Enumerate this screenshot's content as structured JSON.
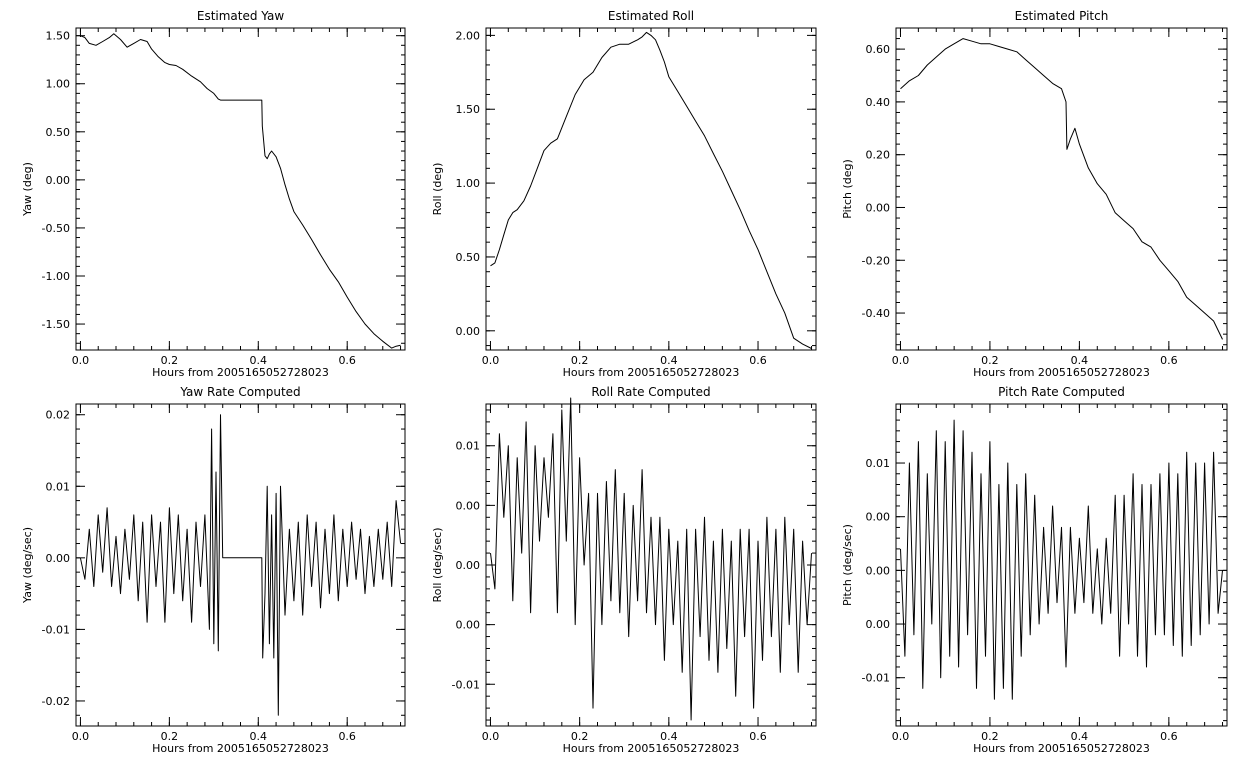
{
  "chart_data": [
    {
      "type": "line",
      "title": "Estimated Yaw",
      "xlabel": "Hours from 2005165052728023",
      "ylabel": "Yaw (deg)",
      "xlim": [
        -0.01,
        0.73
      ],
      "ylim": [
        -1.77,
        1.58
      ],
      "xticks": [
        0.0,
        0.2,
        0.4,
        0.6
      ],
      "xtick_labels": [
        "0.0",
        "0.2",
        "0.4",
        "0.6"
      ],
      "yticks": [
        -1.5,
        -1.0,
        -0.5,
        0.0,
        0.5,
        1.0,
        1.5
      ],
      "ytick_labels": [
        "-1.50",
        "-1.00",
        "-0.50",
        "0.00",
        "0.50",
        "1.00",
        "1.50"
      ],
      "grid": false,
      "series": [
        {
          "x": [
            0.0,
            0.01,
            0.02,
            0.035,
            0.05,
            0.065,
            0.075,
            0.09,
            0.105,
            0.12,
            0.135,
            0.15,
            0.16,
            0.175,
            0.19,
            0.2,
            0.215,
            0.23,
            0.25,
            0.27,
            0.285,
            0.3,
            0.31,
            0.315,
            0.35,
            0.38,
            0.408,
            0.409,
            0.415,
            0.42,
            0.425,
            0.43,
            0.44,
            0.45,
            0.46,
            0.47,
            0.48,
            0.5,
            0.52,
            0.54,
            0.56,
            0.58,
            0.6,
            0.62,
            0.64,
            0.66,
            0.68,
            0.7,
            0.71,
            0.72
          ],
          "y": [
            1.5,
            1.48,
            1.42,
            1.4,
            1.44,
            1.48,
            1.52,
            1.46,
            1.38,
            1.42,
            1.46,
            1.44,
            1.36,
            1.28,
            1.22,
            1.2,
            1.19,
            1.15,
            1.08,
            1.02,
            0.95,
            0.9,
            0.84,
            0.83,
            0.83,
            0.83,
            0.83,
            0.56,
            0.25,
            0.22,
            0.27,
            0.3,
            0.24,
            0.12,
            -0.05,
            -0.2,
            -0.33,
            -0.47,
            -0.62,
            -0.78,
            -0.93,
            -1.06,
            -1.22,
            -1.37,
            -1.5,
            -1.6,
            -1.68,
            -1.75,
            -1.73,
            -1.72
          ]
        }
      ]
    },
    {
      "type": "line",
      "title": "Estimated Roll",
      "xlabel": "Hours from 2005165052728023",
      "ylabel": "Roll (deg)",
      "xlim": [
        -0.01,
        0.73
      ],
      "ylim": [
        -0.13,
        2.05
      ],
      "xticks": [
        0.0,
        0.2,
        0.4,
        0.6
      ],
      "xtick_labels": [
        "0.0",
        "0.2",
        "0.4",
        "0.6"
      ],
      "yticks": [
        0.0,
        0.5,
        1.0,
        1.5,
        2.0
      ],
      "ytick_labels": [
        "0.00",
        "0.50",
        "1.00",
        "1.50",
        "2.00"
      ],
      "grid": false,
      "series": [
        {
          "x": [
            0.0,
            0.01,
            0.02,
            0.03,
            0.04,
            0.05,
            0.06,
            0.075,
            0.09,
            0.105,
            0.12,
            0.135,
            0.15,
            0.17,
            0.19,
            0.21,
            0.23,
            0.25,
            0.27,
            0.29,
            0.31,
            0.33,
            0.34,
            0.35,
            0.36,
            0.37,
            0.38,
            0.39,
            0.4,
            0.42,
            0.44,
            0.46,
            0.48,
            0.5,
            0.52,
            0.54,
            0.56,
            0.58,
            0.6,
            0.62,
            0.64,
            0.66,
            0.68,
            0.7,
            0.72
          ],
          "y": [
            0.44,
            0.46,
            0.55,
            0.65,
            0.75,
            0.8,
            0.82,
            0.88,
            0.98,
            1.1,
            1.22,
            1.27,
            1.3,
            1.45,
            1.6,
            1.7,
            1.75,
            1.85,
            1.92,
            1.94,
            1.94,
            1.97,
            1.99,
            2.02,
            2.0,
            1.97,
            1.9,
            1.82,
            1.72,
            1.62,
            1.52,
            1.42,
            1.32,
            1.2,
            1.08,
            0.95,
            0.82,
            0.68,
            0.55,
            0.4,
            0.25,
            0.12,
            -0.05,
            -0.09,
            -0.12
          ]
        }
      ]
    },
    {
      "type": "line",
      "title": "Estimated Pitch",
      "xlabel": "Hours from 2005165052728023",
      "ylabel": "Pitch (deg)",
      "xlim": [
        -0.01,
        0.73
      ],
      "ylim": [
        -0.54,
        0.68
      ],
      "xticks": [
        0.0,
        0.2,
        0.4,
        0.6
      ],
      "xtick_labels": [
        "0.0",
        "0.2",
        "0.4",
        "0.6"
      ],
      "yticks": [
        -0.4,
        -0.2,
        0.0,
        0.2,
        0.4,
        0.6
      ],
      "ytick_labels": [
        "-0.40",
        "-0.20",
        "0.00",
        "0.20",
        "0.40",
        "0.60"
      ],
      "grid": false,
      "series": [
        {
          "x": [
            0.0,
            0.02,
            0.04,
            0.06,
            0.08,
            0.1,
            0.12,
            0.14,
            0.16,
            0.18,
            0.2,
            0.22,
            0.24,
            0.26,
            0.28,
            0.3,
            0.32,
            0.34,
            0.36,
            0.37,
            0.372,
            0.38,
            0.39,
            0.4,
            0.42,
            0.44,
            0.46,
            0.48,
            0.5,
            0.52,
            0.54,
            0.56,
            0.58,
            0.6,
            0.62,
            0.64,
            0.66,
            0.68,
            0.7,
            0.72
          ],
          "y": [
            0.45,
            0.48,
            0.5,
            0.54,
            0.57,
            0.6,
            0.62,
            0.64,
            0.63,
            0.62,
            0.62,
            0.61,
            0.6,
            0.59,
            0.56,
            0.53,
            0.5,
            0.47,
            0.45,
            0.4,
            0.22,
            0.26,
            0.3,
            0.24,
            0.15,
            0.09,
            0.05,
            -0.02,
            -0.05,
            -0.08,
            -0.13,
            -0.15,
            -0.2,
            -0.24,
            -0.28,
            -0.34,
            -0.37,
            -0.4,
            -0.43,
            -0.5
          ]
        }
      ]
    },
    {
      "type": "line",
      "title": "Yaw Rate Computed",
      "xlabel": "Hours from 2005165052728023",
      "ylabel": "Yaw (deg/sec)",
      "xlim": [
        -0.01,
        0.73
      ],
      "ylim": [
        -0.0235,
        0.0215
      ],
      "xticks": [
        0.0,
        0.2,
        0.4,
        0.6
      ],
      "xtick_labels": [
        "0.0",
        "0.2",
        "0.4",
        "0.6"
      ],
      "yticks": [
        -0.02,
        -0.01,
        0.0,
        0.01,
        0.02
      ],
      "ytick_labels": [
        "-0.02",
        "-0.01",
        "0.00",
        "0.01",
        "0.02"
      ],
      "grid": false,
      "series": [
        {
          "x": [
            0.0,
            0.01,
            0.02,
            0.03,
            0.04,
            0.05,
            0.06,
            0.07,
            0.08,
            0.09,
            0.1,
            0.11,
            0.12,
            0.13,
            0.14,
            0.15,
            0.16,
            0.17,
            0.18,
            0.19,
            0.2,
            0.21,
            0.22,
            0.23,
            0.24,
            0.25,
            0.26,
            0.27,
            0.28,
            0.29,
            0.295,
            0.3,
            0.305,
            0.31,
            0.315,
            0.32,
            0.33,
            0.36,
            0.39,
            0.408,
            0.41,
            0.415,
            0.42,
            0.425,
            0.43,
            0.435,
            0.44,
            0.445,
            0.45,
            0.46,
            0.47,
            0.48,
            0.49,
            0.5,
            0.51,
            0.52,
            0.53,
            0.54,
            0.55,
            0.56,
            0.57,
            0.58,
            0.59,
            0.6,
            0.61,
            0.62,
            0.63,
            0.64,
            0.65,
            0.66,
            0.67,
            0.68,
            0.69,
            0.7,
            0.71,
            0.72
          ],
          "y": [
            0.0,
            -0.003,
            0.004,
            -0.004,
            0.006,
            -0.002,
            0.007,
            -0.004,
            0.003,
            -0.005,
            0.004,
            -0.003,
            0.006,
            -0.006,
            0.005,
            -0.009,
            0.006,
            -0.004,
            0.005,
            -0.009,
            0.007,
            -0.005,
            0.006,
            -0.006,
            0.004,
            -0.009,
            0.005,
            -0.004,
            0.006,
            -0.01,
            0.018,
            -0.012,
            0.012,
            -0.013,
            0.02,
            0.0,
            0.0,
            0.0,
            0.0,
            0.0,
            -0.014,
            -0.005,
            0.01,
            -0.012,
            0.006,
            -0.014,
            0.009,
            -0.022,
            0.01,
            -0.008,
            0.004,
            -0.006,
            0.005,
            -0.008,
            0.006,
            -0.004,
            0.005,
            -0.007,
            0.004,
            -0.005,
            0.006,
            -0.006,
            0.004,
            -0.004,
            0.005,
            -0.003,
            0.004,
            -0.005,
            0.003,
            -0.004,
            0.004,
            -0.003,
            0.005,
            -0.004,
            0.008,
            0.002
          ]
        }
      ]
    },
    {
      "type": "line",
      "title": "Roll Rate Computed",
      "xlabel": "Hours from 2005165052728023",
      "ylabel": "Roll (deg/sec)",
      "xlim": [
        -0.01,
        0.73
      ],
      "ylim": [
        -0.0135,
        0.0135
      ],
      "xticks": [
        0.0,
        0.2,
        0.4,
        0.6
      ],
      "xtick_labels": [
        "0.0",
        "0.2",
        "0.4",
        "0.6"
      ],
      "yticks": [
        -0.01,
        -0.005,
        0.0,
        0.005,
        0.01
      ],
      "ytick_labels": [
        "-0.01",
        "0.00",
        "0.00",
        "0.00",
        "0.01"
      ],
      "grid": false,
      "series": [
        {
          "x": [
            0.0,
            0.01,
            0.02,
            0.03,
            0.04,
            0.05,
            0.06,
            0.07,
            0.08,
            0.09,
            0.1,
            0.11,
            0.12,
            0.13,
            0.14,
            0.15,
            0.16,
            0.17,
            0.18,
            0.19,
            0.2,
            0.21,
            0.22,
            0.23,
            0.24,
            0.25,
            0.26,
            0.27,
            0.28,
            0.29,
            0.3,
            0.31,
            0.32,
            0.33,
            0.34,
            0.35,
            0.36,
            0.37,
            0.38,
            0.39,
            0.4,
            0.41,
            0.42,
            0.43,
            0.44,
            0.45,
            0.46,
            0.47,
            0.48,
            0.49,
            0.5,
            0.51,
            0.52,
            0.53,
            0.54,
            0.55,
            0.56,
            0.57,
            0.58,
            0.59,
            0.6,
            0.61,
            0.62,
            0.63,
            0.64,
            0.65,
            0.66,
            0.67,
            0.68,
            0.69,
            0.7,
            0.71,
            0.72
          ],
          "y": [
            0.001,
            -0.002,
            0.011,
            0.004,
            0.01,
            -0.003,
            0.009,
            0.001,
            0.012,
            -0.004,
            0.01,
            0.002,
            0.009,
            0.004,
            0.011,
            -0.004,
            0.013,
            0.002,
            0.014,
            -0.005,
            0.009,
            0.0,
            0.006,
            -0.012,
            0.006,
            -0.005,
            0.007,
            -0.003,
            0.008,
            -0.004,
            0.006,
            -0.006,
            0.005,
            -0.003,
            0.008,
            -0.004,
            0.004,
            -0.005,
            0.004,
            -0.008,
            0.003,
            -0.005,
            0.002,
            -0.009,
            0.003,
            -0.013,
            0.003,
            -0.006,
            0.004,
            -0.008,
            0.002,
            -0.009,
            0.003,
            -0.007,
            0.002,
            -0.011,
            0.003,
            -0.006,
            0.003,
            -0.012,
            0.002,
            -0.008,
            0.004,
            -0.006,
            0.003,
            -0.009,
            0.004,
            -0.005,
            0.003,
            -0.009,
            0.002,
            -0.005,
            0.001
          ]
        }
      ]
    },
    {
      "type": "line",
      "title": "Pitch Rate Computed",
      "xlabel": "Hours from 2005165052728023",
      "ylabel": "Pitch (deg/sec)",
      "xlim": [
        -0.01,
        0.73
      ],
      "ylim": [
        -0.0145,
        0.0155
      ],
      "xticks": [
        0.0,
        0.2,
        0.4,
        0.6
      ],
      "xtick_labels": [
        "0.0",
        "0.2",
        "0.4",
        "0.6"
      ],
      "yticks": [
        -0.01,
        -0.005,
        0.0,
        0.005,
        0.01
      ],
      "ytick_labels": [
        "-0.01",
        "0.00",
        "0.00",
        "0.00",
        "0.01"
      ],
      "grid": false,
      "series": [
        {
          "x": [
            0.0,
            0.01,
            0.02,
            0.03,
            0.04,
            0.05,
            0.06,
            0.07,
            0.08,
            0.09,
            0.1,
            0.11,
            0.12,
            0.13,
            0.14,
            0.15,
            0.16,
            0.17,
            0.18,
            0.19,
            0.2,
            0.21,
            0.22,
            0.23,
            0.24,
            0.25,
            0.26,
            0.27,
            0.28,
            0.29,
            0.3,
            0.31,
            0.32,
            0.33,
            0.34,
            0.35,
            0.36,
            0.37,
            0.38,
            0.39,
            0.4,
            0.41,
            0.42,
            0.43,
            0.44,
            0.45,
            0.46,
            0.47,
            0.48,
            0.49,
            0.5,
            0.51,
            0.52,
            0.53,
            0.54,
            0.55,
            0.56,
            0.57,
            0.58,
            0.59,
            0.6,
            0.61,
            0.62,
            0.63,
            0.64,
            0.65,
            0.66,
            0.67,
            0.68,
            0.69,
            0.7,
            0.71,
            0.72
          ],
          "y": [
            0.002,
            -0.008,
            0.01,
            -0.006,
            0.012,
            -0.011,
            0.009,
            -0.005,
            0.013,
            -0.01,
            0.012,
            -0.008,
            0.014,
            -0.009,
            0.013,
            -0.006,
            0.011,
            -0.011,
            0.009,
            -0.008,
            0.012,
            -0.012,
            0.008,
            -0.011,
            0.01,
            -0.012,
            0.008,
            -0.008,
            0.009,
            -0.006,
            0.007,
            -0.005,
            0.004,
            -0.004,
            0.006,
            -0.003,
            0.004,
            -0.009,
            0.004,
            -0.004,
            0.003,
            -0.003,
            0.006,
            -0.004,
            0.002,
            -0.005,
            0.003,
            -0.004,
            0.007,
            -0.008,
            0.007,
            -0.005,
            0.009,
            -0.008,
            0.008,
            -0.009,
            0.008,
            -0.006,
            0.009,
            -0.006,
            0.01,
            -0.007,
            0.009,
            -0.008,
            0.011,
            -0.007,
            0.01,
            -0.006,
            0.01,
            -0.005,
            0.011,
            -0.004,
            0.0
          ]
        }
      ]
    }
  ]
}
